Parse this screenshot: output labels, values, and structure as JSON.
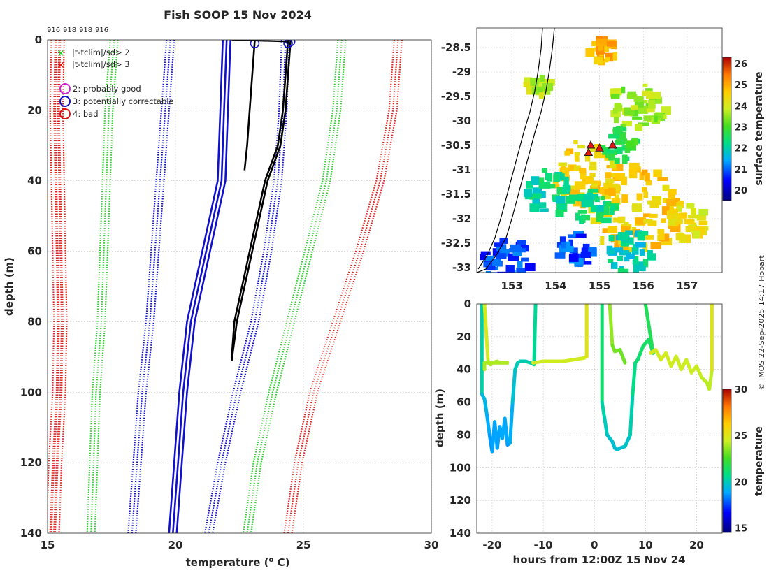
{
  "page_title": "Fish SOOP 15 Nov 2024",
  "credit": "© IMOS 22-Sep-2025 14:17 Hobart",
  "chart_data": [
    {
      "type": "line",
      "name": "profile",
      "title": "Fish SOOP 15 Nov 2024",
      "xlabel": "temperature (o C)",
      "ylabel": "depth (m)",
      "xlim": [
        15,
        30
      ],
      "ylim": [
        0,
        140
      ],
      "y_reversed": true,
      "xticks": [
        "15",
        "20",
        "25",
        "30"
      ],
      "yticks": [
        "0",
        "20",
        "40",
        "60",
        "80",
        "100",
        "120",
        "140"
      ],
      "top_labels": [
        "916",
        "918",
        "918",
        "916"
      ],
      "legend": [
        {
          "label": "|t-tclim|/sd> 2",
          "marker": "x",
          "color": "#22cc22"
        },
        {
          "label": "|t-tclim|/sd> 3",
          "marker": "x",
          "color": "#dd1111"
        },
        {
          "label": "2: probably good",
          "marker": "o",
          "color": "#cc22cc"
        },
        {
          "label": "3: potentially correctable",
          "marker": "o",
          "color": "#1111cc"
        },
        {
          "label": "4: bad",
          "marker": "o",
          "color": "#dd1111"
        }
      ],
      "series": [
        {
          "name": "clim-red-low",
          "color": "#dd2222",
          "style": "dotted",
          "x": [
            15.3,
            15.25,
            15.3,
            15.35,
            15.4,
            15.35,
            15.2,
            15.1
          ],
          "y": [
            0,
            20,
            40,
            60,
            80,
            100,
            120,
            140
          ]
        },
        {
          "name": "clim-red-low-b",
          "color": "#dd2222",
          "style": "dotted",
          "x": [
            15.5,
            15.45,
            15.5,
            15.55,
            15.6,
            15.55,
            15.4,
            15.3
          ],
          "y": [
            0,
            20,
            40,
            60,
            80,
            100,
            120,
            140
          ]
        },
        {
          "name": "clim-green-low",
          "color": "#33cc33",
          "style": "dotted",
          "x": [
            17.6,
            17.4,
            17.3,
            17.2,
            17.1,
            16.9,
            16.8,
            16.7
          ],
          "y": [
            0,
            20,
            40,
            60,
            80,
            100,
            120,
            140
          ]
        },
        {
          "name": "clim-blue-low",
          "color": "#1111cc",
          "style": "dotted",
          "x": [
            19.8,
            19.6,
            19.4,
            19.2,
            19.0,
            18.7,
            18.5,
            18.3
          ],
          "y": [
            0,
            20,
            40,
            60,
            80,
            100,
            120,
            140
          ]
        },
        {
          "name": "clim-blue-mean",
          "color": "#1111cc",
          "style": "solid",
          "x": [
            22.0,
            21.9,
            21.8,
            21.2,
            20.6,
            20.3,
            20.1,
            19.9
          ],
          "y": [
            0,
            20,
            40,
            60,
            80,
            100,
            120,
            140
          ]
        },
        {
          "name": "clim-blue-high",
          "color": "#1111cc",
          "style": "dotted",
          "x": [
            24.3,
            24.2,
            24.0,
            23.6,
            23.1,
            22.4,
            21.8,
            21.3
          ],
          "y": [
            0,
            20,
            40,
            60,
            80,
            100,
            120,
            140
          ]
        },
        {
          "name": "clim-green-high",
          "color": "#33cc33",
          "style": "dotted",
          "x": [
            26.5,
            26.3,
            25.9,
            25.2,
            24.5,
            23.8,
            23.2,
            22.8
          ],
          "y": [
            0,
            20,
            40,
            60,
            80,
            100,
            120,
            140
          ]
        },
        {
          "name": "clim-red-high",
          "color": "#dd2222",
          "style": "dotted",
          "x": [
            28.7,
            28.5,
            28.0,
            27.2,
            26.3,
            25.4,
            24.8,
            24.4
          ],
          "y": [
            0,
            20,
            40,
            60,
            80,
            100,
            120,
            140
          ]
        },
        {
          "name": "profile-1",
          "color": "#000000",
          "style": "solid",
          "x": [
            24.4,
            24.3,
            24.2,
            24.0,
            23.5,
            23.2,
            22.9,
            22.6,
            22.3,
            22.2
          ],
          "y": [
            0,
            10,
            20,
            30,
            40,
            50,
            60,
            70,
            80,
            90
          ]
        },
        {
          "name": "profile-2",
          "color": "#000000",
          "style": "solid",
          "x": [
            23.1,
            23.0,
            22.9,
            22.8,
            22.7
          ],
          "y": [
            0,
            10,
            20,
            30,
            37
          ]
        },
        {
          "name": "profile-3",
          "color": "#000000",
          "style": "solid",
          "x": [
            24.5,
            24.4,
            24.3,
            24.1,
            23.6,
            23.3,
            23.0,
            22.7,
            22.4,
            22.2
          ],
          "y": [
            0,
            10,
            20,
            30,
            40,
            50,
            60,
            70,
            80,
            91
          ]
        }
      ]
    },
    {
      "type": "heatmap",
      "name": "map",
      "xticks": [
        "153",
        "154",
        "155",
        "156",
        "157"
      ],
      "yticks": [
        "-28.5",
        "-29",
        "-29.5",
        "-30",
        "-30.5",
        "-31",
        "-31.5",
        "-32",
        "-32.5",
        "-33"
      ],
      "xlim": [
        152.2,
        157.8
      ],
      "ylim": [
        -33.1,
        -28.1
      ],
      "colorbar_label": "surface temperature",
      "colorbar_ticks": [
        "20",
        "21",
        "22",
        "23",
        "24",
        "25",
        "26"
      ],
      "colorbar_range": [
        19.5,
        26.3
      ],
      "markers": [
        {
          "lon": 154.8,
          "lat": -30.5
        },
        {
          "lon": 155.0,
          "lat": -30.56
        },
        {
          "lon": 155.3,
          "lat": -30.5
        },
        {
          "lon": 154.75,
          "lat": -30.65
        }
      ],
      "patches": [
        {
          "lon": 155.7,
          "lat": -31.7,
          "value": 24.6,
          "r": 1.0
        },
        {
          "lon": 154.6,
          "lat": -31.0,
          "value": 24.5,
          "r": 0.7
        },
        {
          "lon": 155.8,
          "lat": -29.6,
          "value": 23.6,
          "r": 0.6
        },
        {
          "lon": 153.8,
          "lat": -31.4,
          "value": 22.2,
          "r": 0.5
        },
        {
          "lon": 154.8,
          "lat": -31.7,
          "value": 22.2,
          "r": 0.4
        },
        {
          "lon": 155.6,
          "lat": -32.6,
          "value": 22.0,
          "r": 0.5
        },
        {
          "lon": 152.8,
          "lat": -32.8,
          "value": 20.8,
          "r": 0.5
        },
        {
          "lon": 154.4,
          "lat": -32.6,
          "value": 20.9,
          "r": 0.4
        },
        {
          "lon": 155.0,
          "lat": -28.5,
          "value": 24.9,
          "r": 0.3
        },
        {
          "lon": 153.5,
          "lat": -29.2,
          "value": 23.8,
          "r": 0.25
        },
        {
          "lon": 155.4,
          "lat": -30.4,
          "value": 22.8,
          "r": 0.4
        },
        {
          "lon": 156.9,
          "lat": -32.0,
          "value": 24.2,
          "r": 0.4
        }
      ]
    },
    {
      "type": "scatter",
      "name": "section",
      "xlabel": "hours from 12:00Z 15 Nov 24",
      "ylabel": "depth (m)",
      "xlim": [
        -23,
        25
      ],
      "ylim": [
        0,
        140
      ],
      "y_reversed": true,
      "xticks": [
        "-20",
        "-10",
        "0",
        "10",
        "20"
      ],
      "yticks": [
        "0",
        "20",
        "40",
        "60",
        "80",
        "100",
        "120",
        "140"
      ],
      "colorbar_label": "temperature",
      "colorbar_ticks": [
        "15",
        "20",
        "25",
        "30"
      ],
      "colorbar_range": [
        14.5,
        30
      ],
      "dives": [
        {
          "x": [
            -22,
            -22,
            -21.5,
            -21,
            -20.5,
            -20,
            -19.5,
            -19,
            -18.5,
            -18,
            -17.5,
            -17,
            -16.5,
            -16,
            -15.5,
            -15,
            -14.5,
            -14,
            -13.5,
            -12.5,
            -11.8,
            -11.5
          ],
          "y": [
            0,
            55,
            58,
            68,
            80,
            90,
            72,
            88,
            75,
            82,
            70,
            86,
            85,
            60,
            40,
            36,
            35,
            35,
            35,
            36,
            37,
            0
          ]
        },
        {
          "x": [
            -21.5,
            -20.8,
            -20.3,
            -20,
            -19
          ],
          "y": [
            0,
            35,
            37,
            36,
            35
          ]
        },
        {
          "x": [
            -21.5,
            -21.5,
            -20,
            -17
          ],
          "y": [
            40,
            36,
            36,
            36
          ]
        },
        {
          "x": [
            -12,
            -10,
            -6,
            -4,
            -2,
            -1.5,
            -1.5
          ],
          "y": [
            36,
            35,
            35,
            34,
            33,
            32,
            0
          ]
        },
        {
          "x": [
            1.5,
            1.5,
            2,
            2.5,
            3,
            3.5,
            4,
            4.5,
            5,
            6,
            7,
            7.5,
            8,
            8.5,
            9,
            9.5,
            10,
            10.5,
            11,
            11.5,
            10
          ],
          "y": [
            0,
            60,
            70,
            80,
            82,
            84,
            88,
            89,
            88,
            87,
            80,
            55,
            36,
            34,
            30,
            26,
            24,
            22,
            25,
            30,
            0
          ]
        },
        {
          "x": [
            3,
            3.5,
            4,
            5,
            6
          ],
          "y": [
            0,
            25,
            29,
            28,
            36
          ]
        },
        {
          "x": [
            11,
            12,
            13,
            14,
            15,
            16,
            17,
            18,
            19,
            20,
            21,
            22,
            22.5,
            23,
            23
          ],
          "y": [
            30,
            28,
            34,
            30,
            38,
            32,
            40,
            34,
            42,
            38,
            45,
            48,
            52,
            40,
            0
          ]
        }
      ],
      "dive_values": [
        18.5,
        22.5,
        22.5,
        23.0,
        19.5,
        21.5,
        23.0
      ]
    }
  ]
}
